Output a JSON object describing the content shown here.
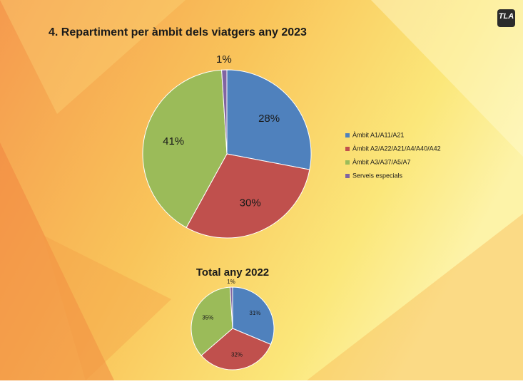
{
  "logo": "TLA",
  "chart_data": [
    {
      "type": "pie",
      "title": "4. Repartiment per àmbit dels viatgers any 2023",
      "categories": [
        "Àmbit A1/A11/A21",
        "Àmbit A2/A22/A21/A4/A40/A42",
        "Àmbit A3/A37/A5/A7",
        "Serveis especials"
      ],
      "values": [
        28,
        30,
        41,
        1
      ],
      "value_labels": [
        "28%",
        "30%",
        "41%",
        "1%"
      ],
      "colors": [
        "#4f81bd",
        "#c0504d",
        "#9bbb59",
        "#8064a2"
      ],
      "legend": "right"
    },
    {
      "type": "pie",
      "title": "Total any 2022",
      "values": [
        31,
        32,
        35,
        1
      ],
      "value_labels": [
        "31%",
        "32%",
        "35%",
        "1%"
      ],
      "colors": [
        "#4f81bd",
        "#c0504d",
        "#9bbb59",
        "#8064a2"
      ]
    }
  ]
}
